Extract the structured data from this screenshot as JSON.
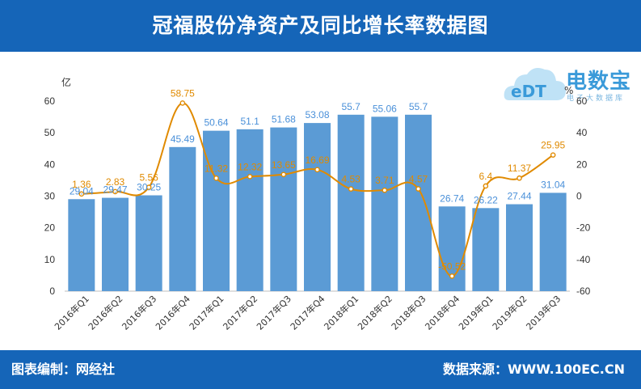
{
  "header": {
    "title": "冠福股份净资产及同比增长率数据图"
  },
  "footer": {
    "left": "图表编制：网经社",
    "right": "数据来源：WWW.100EC.CN"
  },
  "logo": {
    "name": "电数宝",
    "sub": "电子大数据库",
    "brand_mark": "eDT",
    "colors": {
      "main": "#3a9ad9",
      "light": "#9fd0f0"
    }
  },
  "colors": {
    "header": "#1565b8",
    "bar": "#5b9bd5",
    "line": "#e08a00"
  },
  "chart_data": {
    "type": "bar",
    "categories": [
      "2016年Q1",
      "2016年Q2",
      "2016年Q3",
      "2016年Q4",
      "2017年Q1",
      "2017年Q2",
      "2017年Q3",
      "2017年Q4",
      "2018年Q1",
      "2018年Q2",
      "2018年Q3",
      "2018年Q4",
      "2019年Q1",
      "2019年Q2",
      "2019年Q3"
    ],
    "series": [
      {
        "type": "bar",
        "axis": "left",
        "values": [
          29.04,
          29.47,
          30.25,
          45.49,
          50.64,
          51.1,
          51.68,
          53.08,
          55.7,
          55.06,
          55.7,
          26.74,
          26.22,
          27.44,
          31.04
        ]
      },
      {
        "type": "line",
        "axis": "right",
        "values": [
          1.36,
          2.83,
          5.56,
          58.75,
          11.32,
          12.32,
          13.65,
          16.69,
          4.53,
          3.71,
          4.57,
          -50.52,
          6.4,
          11.37,
          25.95
        ]
      }
    ],
    "left_axis": {
      "unit": "亿",
      "ylim": [
        0,
        60
      ],
      "ticks": [
        0,
        10,
        20,
        30,
        40,
        50,
        60
      ]
    },
    "right_axis": {
      "unit": "%",
      "ylim": [
        -60,
        60
      ],
      "ticks": [
        -60,
        -40,
        -20,
        0,
        20,
        40,
        60
      ]
    },
    "grid": false,
    "legend": "none"
  }
}
